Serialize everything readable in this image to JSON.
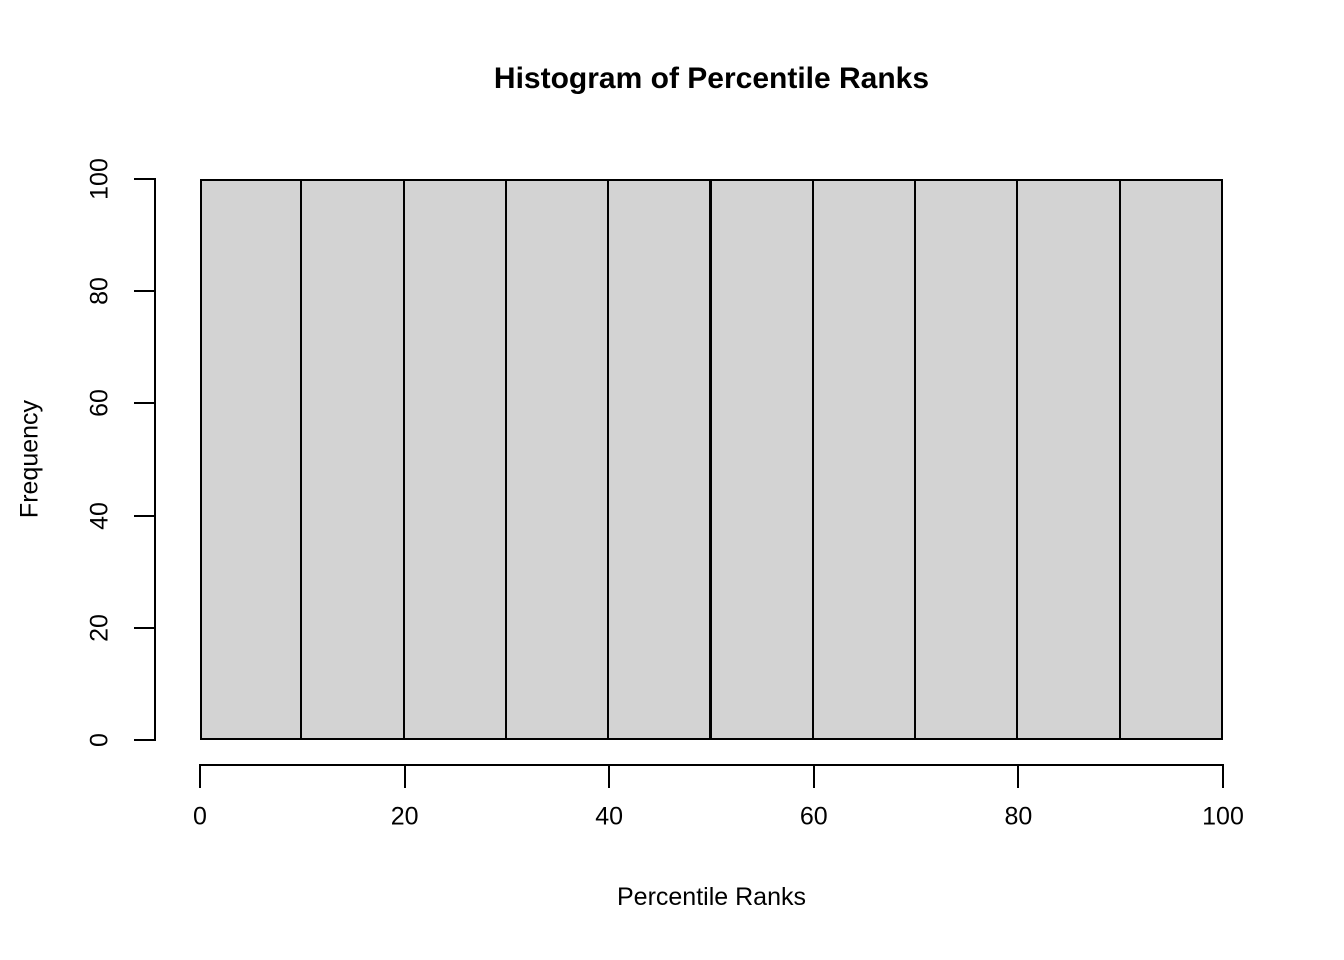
{
  "chart_data": {
    "type": "bar",
    "subtype": "histogram",
    "title": "Histogram of Percentile Ranks",
    "xlabel": "Percentile Ranks",
    "ylabel": "Frequency",
    "bin_edges": [
      0,
      10,
      20,
      30,
      40,
      50,
      60,
      70,
      80,
      90,
      100
    ],
    "values": [
      100,
      100,
      100,
      100,
      100,
      100,
      100,
      100,
      100,
      100
    ],
    "x_ticks": [
      0,
      20,
      40,
      60,
      80,
      100
    ],
    "y_ticks": [
      0,
      20,
      40,
      60,
      80,
      100
    ],
    "xlim": [
      0,
      100
    ],
    "ylim": [
      0,
      100
    ],
    "grid": false,
    "legend_position": "none",
    "colors": {
      "bar_fill": "#d3d3d3",
      "bar_border": "#000000",
      "axis": "#000000",
      "text": "#000000",
      "background": "#ffffff"
    }
  }
}
